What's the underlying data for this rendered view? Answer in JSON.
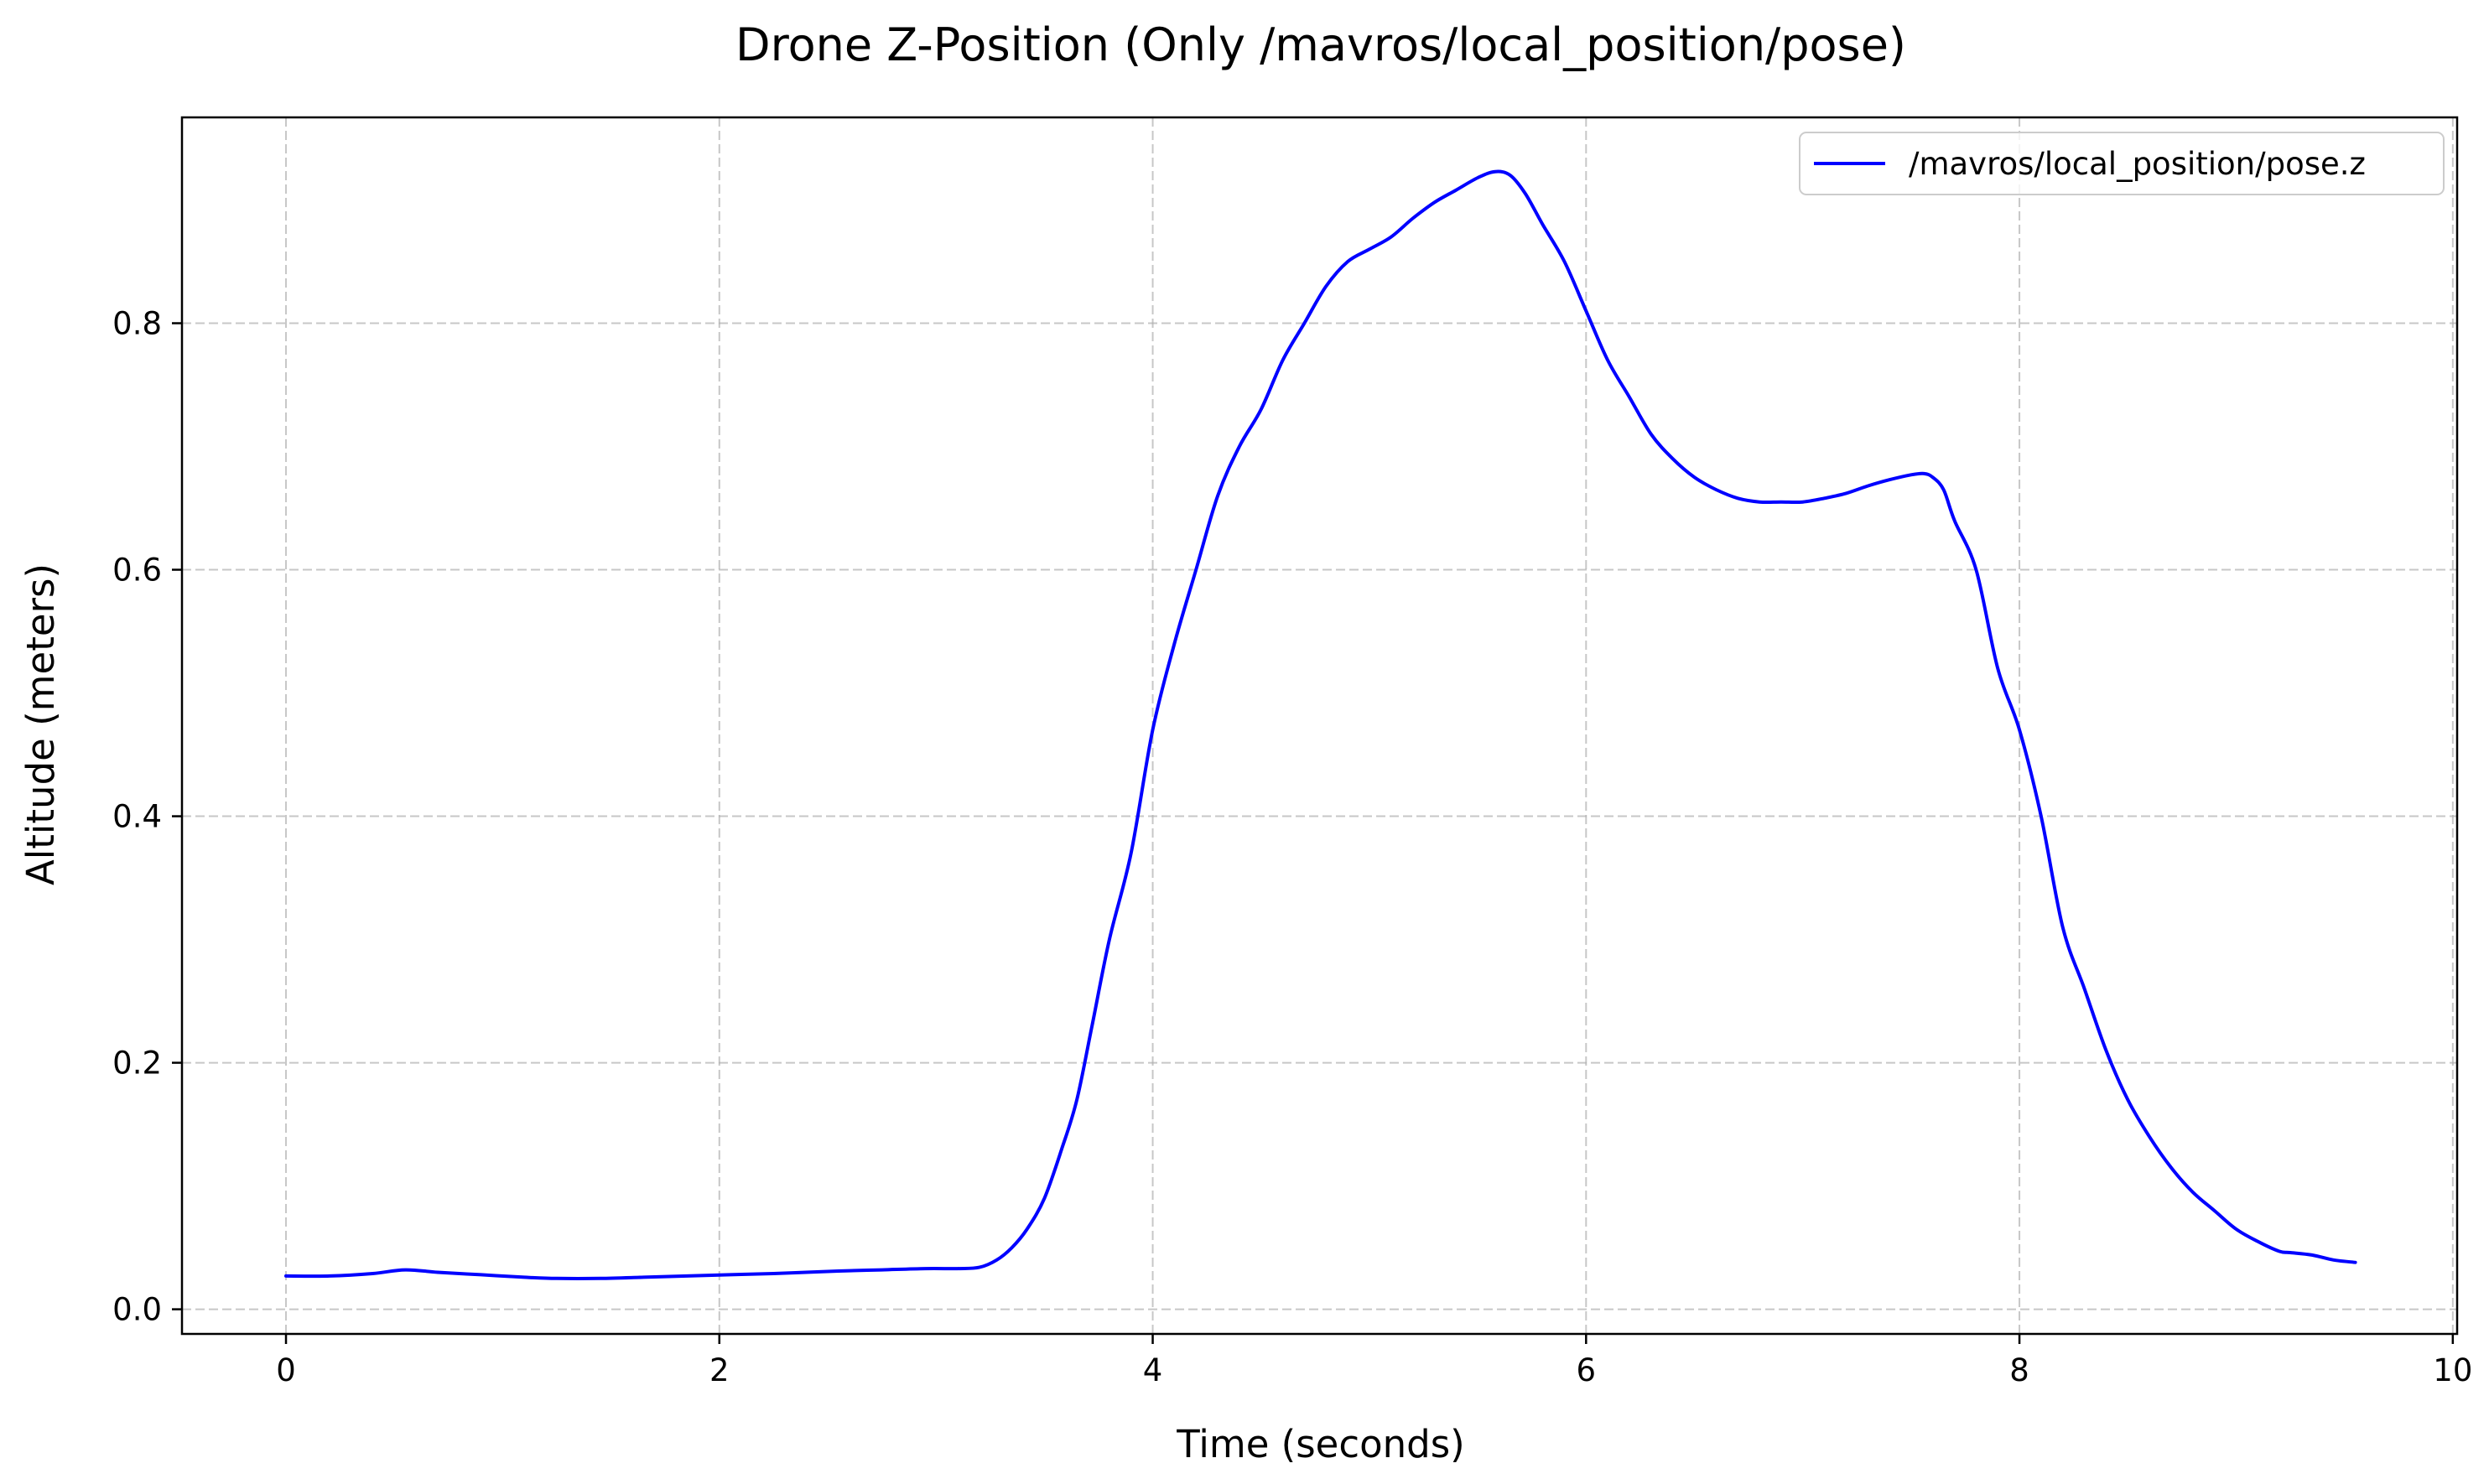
{
  "chart_data": {
    "type": "line",
    "title": "Drone Z-Position (Only /mavros/local_position/pose)",
    "xlabel": "Time (seconds)",
    "ylabel": "Altitude (meters)",
    "xlim": [
      -0.48,
      10.02
    ],
    "ylim": [
      -0.02,
      0.967
    ],
    "xticks": [
      0,
      2,
      4,
      6,
      8,
      10
    ],
    "xtick_labels": [
      "0",
      "2",
      "4",
      "6",
      "8",
      "10"
    ],
    "yticks": [
      0.0,
      0.2,
      0.4,
      0.6,
      0.8
    ],
    "ytick_labels": [
      "0.0",
      "0.2",
      "0.4",
      "0.6",
      "0.8"
    ],
    "grid": true,
    "legend_position": "top-right",
    "series": [
      {
        "name": "/mavros/local_position/pose.z",
        "color": "#0000ff",
        "x": [
          0.0,
          0.2,
          0.4,
          0.55,
          0.7,
          0.9,
          1.1,
          1.25,
          1.45,
          1.65,
          1.85,
          2.05,
          2.25,
          2.4,
          2.55,
          2.75,
          2.95,
          3.1,
          3.2,
          3.28,
          3.35,
          3.42,
          3.5,
          3.58,
          3.65,
          3.72,
          3.8,
          3.9,
          4.0,
          4.1,
          4.2,
          4.3,
          4.4,
          4.5,
          4.6,
          4.7,
          4.8,
          4.9,
          5.0,
          5.1,
          5.2,
          5.3,
          5.4,
          5.5,
          5.58,
          5.65,
          5.72,
          5.8,
          5.9,
          6.0,
          6.1,
          6.2,
          6.3,
          6.4,
          6.5,
          6.6,
          6.7,
          6.8,
          6.9,
          7.0,
          7.1,
          7.2,
          7.3,
          7.4,
          7.5,
          7.56,
          7.6,
          7.65,
          7.7,
          7.8,
          7.9,
          8.0,
          8.1,
          8.2,
          8.3,
          8.4,
          8.5,
          8.6,
          8.7,
          8.8,
          8.9,
          9.0,
          9.1,
          9.2,
          9.25,
          9.35,
          9.45,
          9.55
        ],
        "y": [
          0.027,
          0.027,
          0.029,
          0.032,
          0.03,
          0.028,
          0.026,
          0.025,
          0.025,
          0.026,
          0.027,
          0.028,
          0.029,
          0.03,
          0.031,
          0.032,
          0.033,
          0.033,
          0.034,
          0.04,
          0.05,
          0.065,
          0.09,
          0.13,
          0.17,
          0.23,
          0.3,
          0.37,
          0.47,
          0.54,
          0.6,
          0.66,
          0.7,
          0.73,
          0.77,
          0.8,
          0.83,
          0.85,
          0.86,
          0.87,
          0.885,
          0.898,
          0.908,
          0.918,
          0.923,
          0.92,
          0.905,
          0.88,
          0.85,
          0.81,
          0.77,
          0.74,
          0.71,
          0.69,
          0.675,
          0.665,
          0.658,
          0.655,
          0.655,
          0.655,
          0.658,
          0.662,
          0.668,
          0.673,
          0.677,
          0.678,
          0.675,
          0.665,
          0.64,
          0.6,
          0.52,
          0.47,
          0.4,
          0.31,
          0.26,
          0.21,
          0.17,
          0.14,
          0.115,
          0.095,
          0.08,
          0.065,
          0.055,
          0.047,
          0.046,
          0.044,
          0.04,
          0.038
        ]
      }
    ]
  }
}
